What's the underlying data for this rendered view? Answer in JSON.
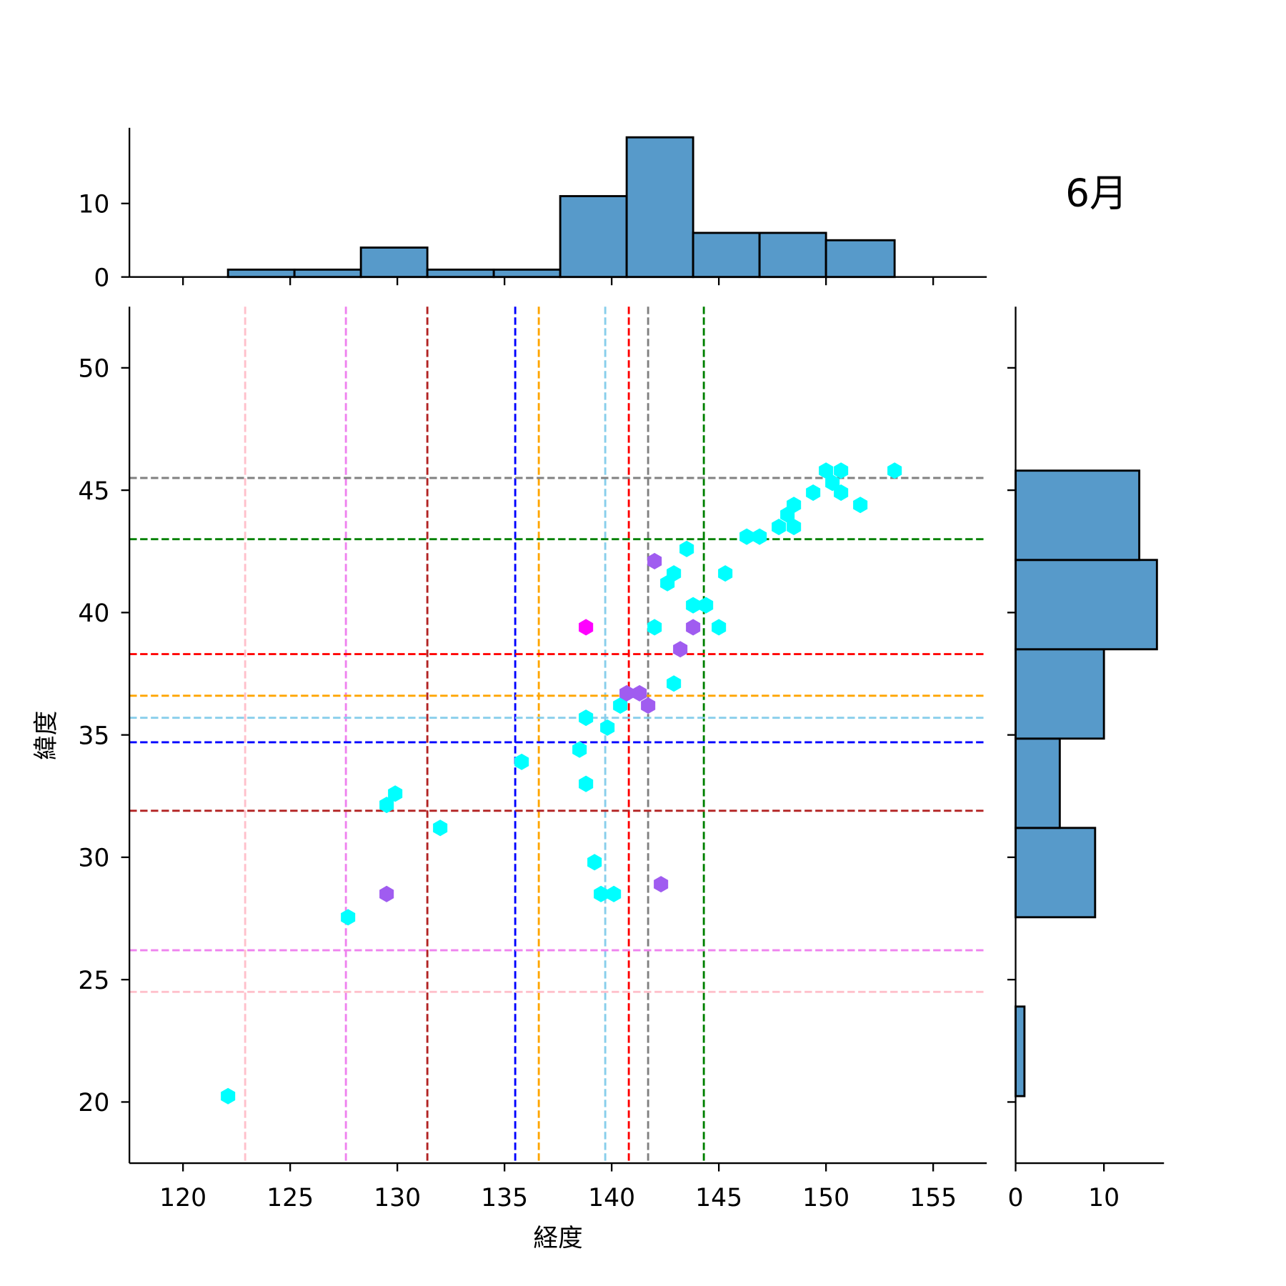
{
  "chart_data": {
    "type": "scatter",
    "title": "6月",
    "xlabel": "経度",
    "ylabel": "緯度",
    "xlim": [
      117.5,
      157.5
    ],
    "ylim": [
      17.5,
      52.5
    ],
    "xticks": [
      120,
      125,
      130,
      135,
      140,
      145,
      150,
      155
    ],
    "yticks": [
      20,
      25,
      30,
      35,
      40,
      45,
      50
    ],
    "grid": false,
    "points": {
      "cyan": {
        "color": "#00ffff",
        "x": [
          122.1,
          127.7,
          129.5,
          129.9,
          132.0,
          135.8,
          138.5,
          138.8,
          138.8,
          139.8,
          140.4,
          139.2,
          139.5,
          140.1,
          142.0,
          142.9,
          142.6,
          142.9,
          143.5,
          143.8,
          144.4,
          145.0,
          145.3,
          146.3,
          146.9,
          147.8,
          148.2,
          148.5,
          148.5,
          149.4,
          150.0,
          150.3,
          150.7,
          150.7,
          151.6,
          153.2
        ],
        "y": [
          20.24,
          27.55,
          32.14,
          32.6,
          31.2,
          33.9,
          34.4,
          33.0,
          35.7,
          35.3,
          36.2,
          29.8,
          28.5,
          28.5,
          39.4,
          37.1,
          41.2,
          41.6,
          42.6,
          40.3,
          40.3,
          39.4,
          41.6,
          43.1,
          43.1,
          43.5,
          44.0,
          43.5,
          44.4,
          44.9,
          45.8,
          45.3,
          45.8,
          44.9,
          44.4,
          45.8
        ]
      },
      "purple": {
        "color": "#a05cf0",
        "x": [
          142.0,
          143.8,
          143.2,
          140.7,
          141.3,
          141.7,
          129.5,
          142.3
        ],
        "y": [
          42.1,
          39.4,
          38.5,
          36.7,
          36.7,
          36.2,
          28.5,
          28.9
        ]
      },
      "magenta": {
        "color": "#ff00ff",
        "x": [
          138.8
        ],
        "y": [
          39.4
        ]
      }
    },
    "vlines": [
      {
        "x": 122.9,
        "color": "#ffc0cb"
      },
      {
        "x": 127.6,
        "color": "#ee82ee"
      },
      {
        "x": 131.4,
        "color": "#b22222"
      },
      {
        "x": 135.5,
        "color": "#0000ff"
      },
      {
        "x": 136.6,
        "color": "#ffa500"
      },
      {
        "x": 139.7,
        "color": "#87ceeb"
      },
      {
        "x": 140.8,
        "color": "#ff0000"
      },
      {
        "x": 141.7,
        "color": "#808080"
      },
      {
        "x": 144.3,
        "color": "#008000"
      }
    ],
    "hlines": [
      {
        "y": 45.5,
        "color": "#808080"
      },
      {
        "y": 43.0,
        "color": "#008000"
      },
      {
        "y": 38.3,
        "color": "#ff0000"
      },
      {
        "y": 36.6,
        "color": "#ffa500"
      },
      {
        "y": 35.7,
        "color": "#87ceeb"
      },
      {
        "y": 34.7,
        "color": "#0000ff"
      },
      {
        "y": 31.9,
        "color": "#b22222"
      },
      {
        "y": 26.2,
        "color": "#ee82ee"
      },
      {
        "y": 24.5,
        "color": "#ffc0cb"
      }
    ],
    "hist_x": {
      "edges": [
        122.1,
        125.2,
        128.3,
        131.4,
        134.5,
        137.6,
        140.7,
        143.8,
        146.9,
        150.0,
        153.2
      ],
      "counts": [
        1,
        1,
        4,
        1,
        1,
        11,
        19,
        6,
        6,
        5
      ],
      "ylim": [
        0,
        20.3
      ],
      "yticks": [
        0,
        10
      ]
    },
    "hist_y": {
      "edges": [
        20.24,
        23.9,
        27.55,
        31.2,
        34.85,
        38.5,
        42.15,
        45.8
      ],
      "counts": [
        1,
        0,
        9,
        5,
        10,
        16,
        14
      ],
      "xlim": [
        0,
        16.8
      ],
      "xticks": [
        0,
        10
      ]
    },
    "bar_color": "#579aca"
  }
}
